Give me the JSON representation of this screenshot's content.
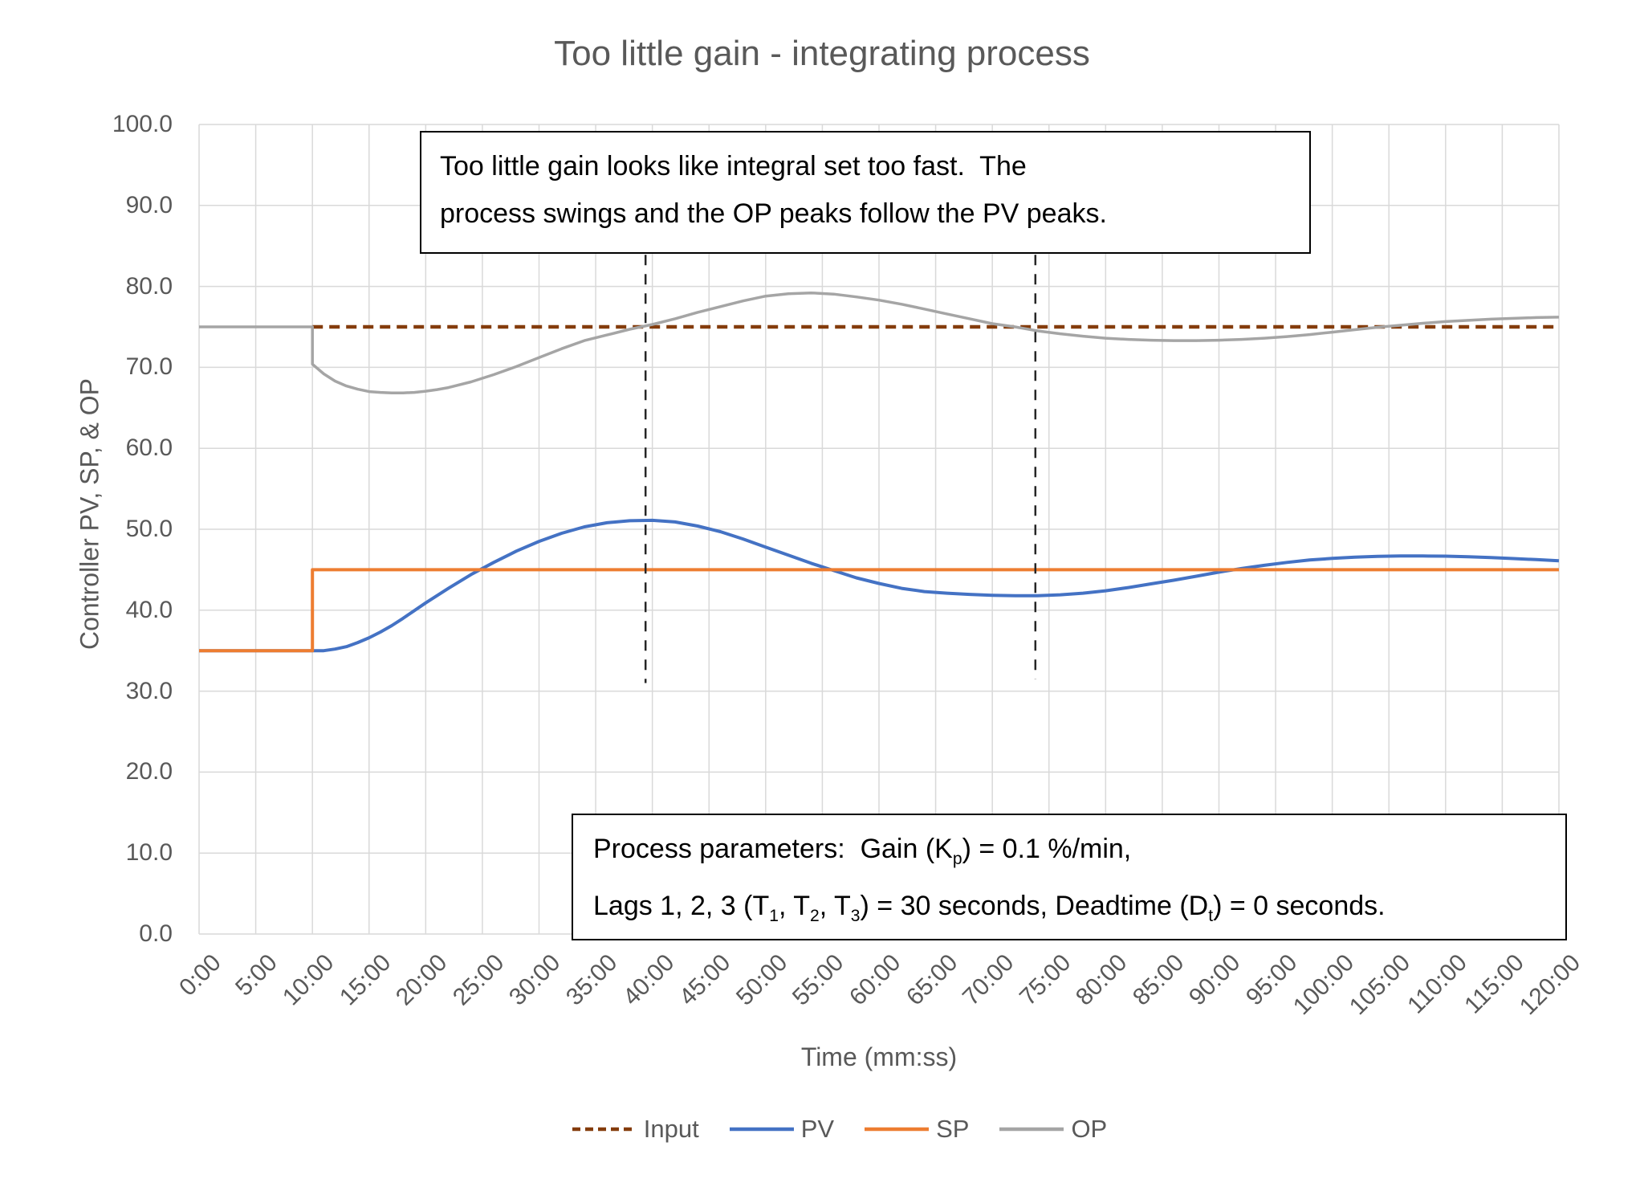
{
  "title": "Too little gain - integrating process",
  "axes": {
    "y_title": "Controller PV, SP, & OP",
    "x_title": "Time (mm:ss)"
  },
  "annotations": {
    "gain_note": {
      "line1": "Too little gain looks like integral set too fast.  The",
      "line2": "process swings and the OP peaks follow the PV peaks."
    },
    "params": {
      "line1": [
        "Process parameters:  Gain (K",
        "p",
        ") = 0.1 %/min,"
      ],
      "line2": [
        "Lags 1, 2, 3 (T",
        "1",
        ", T",
        "2",
        ", T",
        "3",
        ") = 30 seconds, Deadtime (D",
        "t",
        ") = 0 seconds."
      ]
    }
  },
  "legend": [
    {
      "label": "Input",
      "color": "#843C0C",
      "dashed": true
    },
    {
      "label": "PV",
      "color": "#4472C4",
      "dashed": false
    },
    {
      "label": "SP",
      "color": "#ED7D31",
      "dashed": false
    },
    {
      "label": "OP",
      "color": "#A5A5A5",
      "dashed": false
    }
  ],
  "colors": {
    "gridline": "#D9D9D9",
    "axis_text": "#595959",
    "marker_line": "#262626",
    "input": "#843C0C",
    "pv": "#4472C4",
    "sp": "#ED7D31",
    "op": "#A5A5A5"
  },
  "chart_data": {
    "type": "line",
    "title": "Too little gain - integrating process",
    "xlabel": "Time (mm:ss)",
    "ylabel": "Controller PV, SP, & OP",
    "xlim_minutes": [
      0,
      120
    ],
    "ylim": [
      0,
      100
    ],
    "grid": true,
    "legend_position": "bottom",
    "x_tick_interval_minutes": 5,
    "x_tick_labels": [
      "0:00",
      "5:00",
      "10:00",
      "15:00",
      "20:00",
      "25:00",
      "30:00",
      "35:00",
      "40:00",
      "45:00",
      "50:00",
      "55:00",
      "60:00",
      "65:00",
      "70:00",
      "75:00",
      "80:00",
      "85:00",
      "90:00",
      "95:00",
      "100:00",
      "105:00",
      "110:00",
      "115:00",
      "120:00"
    ],
    "y_tick_labels": [
      "100.0",
      "90.0",
      "80.0",
      "70.0",
      "60.0",
      "50.0",
      "40.0",
      "30.0",
      "20.0",
      "10.0",
      "0.0"
    ],
    "markers": [
      {
        "name": "pv-peak-1",
        "t": 39.4,
        "v_from": 83.9,
        "v_to": 31.0
      },
      {
        "name": "pv-trough-1",
        "t": 73.8,
        "v_from": 83.9,
        "v_to": 31.5
      }
    ],
    "series": [
      {
        "name": "Input",
        "color": "#843C0C",
        "width": 4.5,
        "dash": "13 8",
        "points": [
          [
            10,
            75
          ],
          [
            120,
            75
          ]
        ]
      },
      {
        "name": "PV",
        "color": "#4472C4",
        "width": 4,
        "points": [
          [
            0,
            35
          ],
          [
            10,
            35
          ],
          [
            11,
            35
          ],
          [
            12,
            35.2
          ],
          [
            13,
            35.5
          ],
          [
            14,
            36
          ],
          [
            15,
            36.6
          ],
          [
            16,
            37.3
          ],
          [
            17,
            38.1
          ],
          [
            18,
            39
          ],
          [
            20,
            40.9
          ],
          [
            22,
            42.7
          ],
          [
            24,
            44.4
          ],
          [
            26,
            45.9
          ],
          [
            28,
            47.3
          ],
          [
            30,
            48.5
          ],
          [
            32,
            49.5
          ],
          [
            34,
            50.3
          ],
          [
            36,
            50.8
          ],
          [
            38,
            51.05
          ],
          [
            40,
            51.1
          ],
          [
            42,
            50.9
          ],
          [
            44,
            50.4
          ],
          [
            46,
            49.7
          ],
          [
            48,
            48.8
          ],
          [
            50,
            47.8
          ],
          [
            52,
            46.8
          ],
          [
            54,
            45.8
          ],
          [
            56,
            44.9
          ],
          [
            58,
            44
          ],
          [
            60,
            43.3
          ],
          [
            62,
            42.7
          ],
          [
            64,
            42.3
          ],
          [
            66,
            42.1
          ],
          [
            68,
            41.95
          ],
          [
            70,
            41.85
          ],
          [
            72,
            41.8
          ],
          [
            74,
            41.8
          ],
          [
            76,
            41.9
          ],
          [
            78,
            42.1
          ],
          [
            80,
            42.4
          ],
          [
            82,
            42.8
          ],
          [
            84,
            43.25
          ],
          [
            86,
            43.7
          ],
          [
            88,
            44.2
          ],
          [
            90,
            44.7
          ],
          [
            92,
            45.15
          ],
          [
            94,
            45.55
          ],
          [
            96,
            45.9
          ],
          [
            98,
            46.2
          ],
          [
            100,
            46.4
          ],
          [
            102,
            46.55
          ],
          [
            104,
            46.65
          ],
          [
            106,
            46.7
          ],
          [
            108,
            46.7
          ],
          [
            110,
            46.68
          ],
          [
            112,
            46.6
          ],
          [
            114,
            46.5
          ],
          [
            116,
            46.38
          ],
          [
            118,
            46.25
          ],
          [
            120,
            46.1
          ]
        ]
      },
      {
        "name": "SP",
        "color": "#ED7D31",
        "width": 4,
        "points": [
          [
            0,
            35
          ],
          [
            10,
            35
          ],
          [
            10,
            45
          ],
          [
            120,
            45
          ]
        ]
      },
      {
        "name": "OP",
        "color": "#A5A5A5",
        "width": 3.5,
        "points": [
          [
            0,
            75
          ],
          [
            10,
            75
          ],
          [
            10,
            70.4
          ],
          [
            11,
            69.2
          ],
          [
            12,
            68.3
          ],
          [
            13,
            67.7
          ],
          [
            14,
            67.3
          ],
          [
            15,
            67
          ],
          [
            16,
            66.9
          ],
          [
            17,
            66.85
          ],
          [
            18,
            66.85
          ],
          [
            19,
            66.9
          ],
          [
            20,
            67.05
          ],
          [
            21,
            67.25
          ],
          [
            22,
            67.5
          ],
          [
            24,
            68.2
          ],
          [
            26,
            69.1
          ],
          [
            28,
            70.1
          ],
          [
            30,
            71.2
          ],
          [
            32,
            72.3
          ],
          [
            34,
            73.3
          ],
          [
            36,
            74
          ],
          [
            38,
            74.7
          ],
          [
            40,
            75.3
          ],
          [
            42,
            76
          ],
          [
            44,
            76.8
          ],
          [
            46,
            77.5
          ],
          [
            48,
            78.2
          ],
          [
            50,
            78.8
          ],
          [
            52,
            79.1
          ],
          [
            54,
            79.2
          ],
          [
            56,
            79.05
          ],
          [
            58,
            78.7
          ],
          [
            60,
            78.3
          ],
          [
            62,
            77.8
          ],
          [
            64,
            77.2
          ],
          [
            66,
            76.6
          ],
          [
            68,
            76
          ],
          [
            70,
            75.4
          ],
          [
            72,
            75
          ],
          [
            74,
            74.5
          ],
          [
            76,
            74.15
          ],
          [
            78,
            73.85
          ],
          [
            80,
            73.6
          ],
          [
            82,
            73.45
          ],
          [
            84,
            73.35
          ],
          [
            86,
            73.3
          ],
          [
            88,
            73.3
          ],
          [
            90,
            73.35
          ],
          [
            92,
            73.45
          ],
          [
            94,
            73.6
          ],
          [
            96,
            73.8
          ],
          [
            98,
            74.05
          ],
          [
            100,
            74.35
          ],
          [
            102,
            74.65
          ],
          [
            104,
            74.95
          ],
          [
            106,
            75.2
          ],
          [
            108,
            75.45
          ],
          [
            110,
            75.65
          ],
          [
            112,
            75.8
          ],
          [
            114,
            75.95
          ],
          [
            116,
            76.05
          ],
          [
            118,
            76.15
          ],
          [
            120,
            76.2
          ]
        ]
      }
    ]
  }
}
